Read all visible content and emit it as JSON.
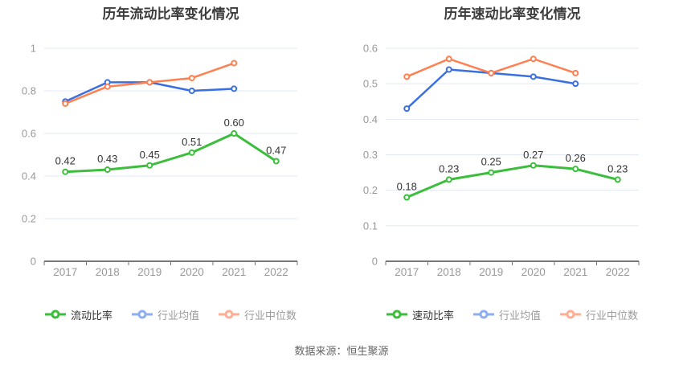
{
  "footer": {
    "text": "数据来源：恒生聚源"
  },
  "colors": {
    "grid": "#e3e8f4",
    "axis": "#4a4a4a",
    "tick_text": "#999999",
    "data_label": "#333333",
    "title_text": "#3c3c3c"
  },
  "chart_data": [
    {
      "type": "line",
      "title": "历年流动比率变化情况",
      "xlabel": "",
      "ylabel": "",
      "categories": [
        "2017",
        "2018",
        "2019",
        "2020",
        "2021",
        "2022"
      ],
      "ylim": [
        0,
        1
      ],
      "yticks": [
        0,
        0.2,
        0.4,
        0.6,
        0.8,
        1
      ],
      "ytick_labels": [
        "0",
        "0.2",
        "0.4",
        "0.6",
        "0.8",
        "1"
      ],
      "grid": true,
      "legend_position": "bottom",
      "series": [
        {
          "name": "流动比率",
          "values": [
            0.42,
            0.43,
            0.45,
            0.51,
            0.6,
            0.47
          ],
          "point_labels": [
            "0.42",
            "0.43",
            "0.45",
            "0.51",
            "0.60",
            "0.47"
          ],
          "show_labels": true,
          "color": "#3cbe3c",
          "legend_marker_color": "#3cbe3c",
          "legend_text_color": "#333333"
        },
        {
          "name": "行业均值",
          "values": [
            0.75,
            0.84,
            0.84,
            0.8,
            0.81
          ],
          "point_labels": [],
          "show_labels": false,
          "color": "#3a6fe0",
          "legend_marker_color": "#8faef0",
          "legend_text_color": "#9b9b9b"
        },
        {
          "name": "行业中位数",
          "values": [
            0.74,
            0.82,
            0.84,
            0.86,
            0.93
          ],
          "point_labels": [],
          "show_labels": false,
          "color": "#ff7f50",
          "legend_marker_color": "#ffae93",
          "legend_text_color": "#9b9b9b"
        }
      ]
    },
    {
      "type": "line",
      "title": "历年速动比率变化情况",
      "xlabel": "",
      "ylabel": "",
      "categories": [
        "2017",
        "2018",
        "2019",
        "2020",
        "2021",
        "2022"
      ],
      "ylim": [
        0,
        0.6
      ],
      "yticks": [
        0,
        0.1,
        0.2,
        0.3,
        0.4,
        0.5,
        0.6
      ],
      "ytick_labels": [
        "0",
        "0.1",
        "0.2",
        "0.3",
        "0.4",
        "0.5",
        "0.6"
      ],
      "grid": true,
      "legend_position": "bottom",
      "series": [
        {
          "name": "速动比率",
          "values": [
            0.18,
            0.23,
            0.25,
            0.27,
            0.26,
            0.23
          ],
          "point_labels": [
            "0.18",
            "0.23",
            "0.25",
            "0.27",
            "0.26",
            "0.23"
          ],
          "show_labels": true,
          "color": "#3cbe3c",
          "legend_marker_color": "#3cbe3c",
          "legend_text_color": "#333333"
        },
        {
          "name": "行业均值",
          "values": [
            0.43,
            0.54,
            0.53,
            0.52,
            0.5
          ],
          "point_labels": [],
          "show_labels": false,
          "color": "#3a6fe0",
          "legend_marker_color": "#8faef0",
          "legend_text_color": "#9b9b9b"
        },
        {
          "name": "行业中位数",
          "values": [
            0.52,
            0.57,
            0.53,
            0.57,
            0.53
          ],
          "point_labels": [],
          "show_labels": false,
          "color": "#ff7f50",
          "legend_marker_color": "#ffae93",
          "legend_text_color": "#9b9b9b"
        }
      ]
    }
  ]
}
